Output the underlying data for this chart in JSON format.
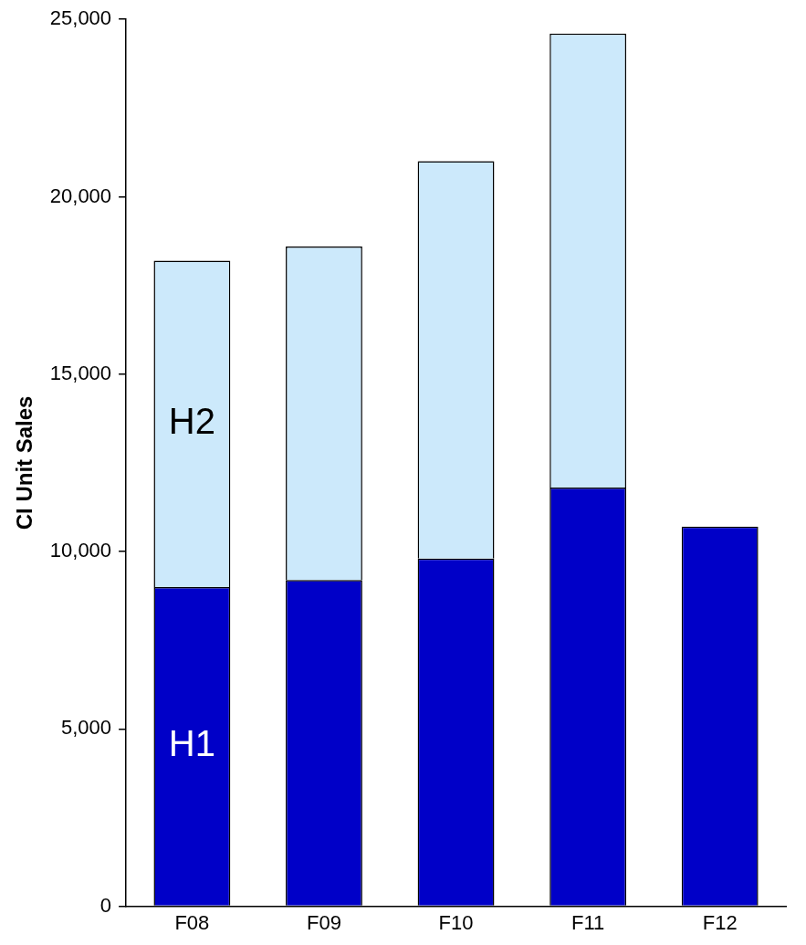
{
  "chart_data": {
    "type": "bar",
    "ylabel": "CI Unit Sales",
    "categories": [
      "F08",
      "F09",
      "F10",
      "F11",
      "F12"
    ],
    "stacked": true,
    "legend": false,
    "grid": false,
    "series": [
      {
        "name": "H1",
        "color": "#0000c8",
        "values": [
          9000,
          9200,
          9800,
          11800,
          10700
        ]
      },
      {
        "name": "H2",
        "color": "#cce9fb",
        "values": [
          9200,
          9400,
          11200,
          12800,
          null
        ]
      }
    ],
    "ylim": [
      0,
      25000
    ],
    "yticks": [
      {
        "value": 0,
        "label": "0"
      },
      {
        "value": 5000,
        "label": "5,000"
      },
      {
        "value": 10000,
        "label": "10,000"
      },
      {
        "value": 15000,
        "label": "15,000"
      },
      {
        "value": 20000,
        "label": "20,000"
      },
      {
        "value": 25000,
        "label": "25,000"
      }
    ]
  }
}
